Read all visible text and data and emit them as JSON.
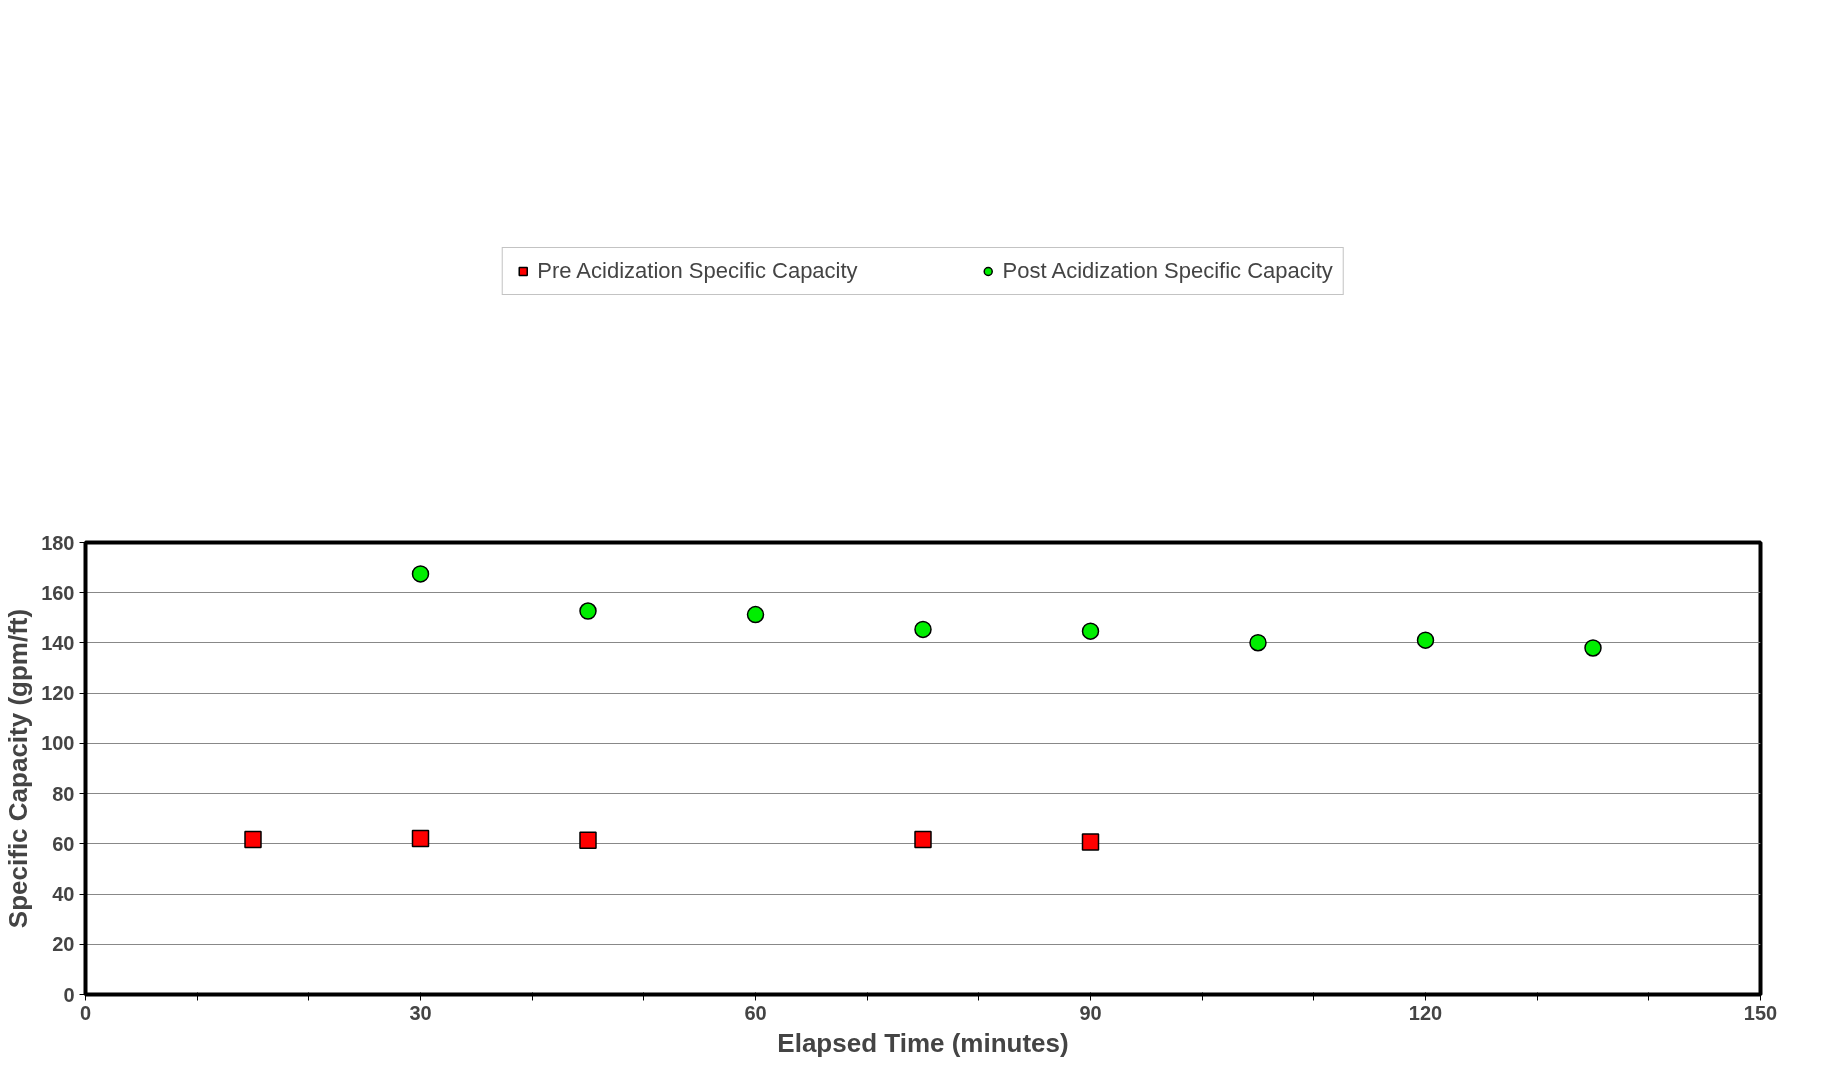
{
  "chart_data": {
    "type": "scatter",
    "xlabel": "Elapsed Time (minutes)",
    "ylabel": "Specific Capacity (gpm/ft)",
    "series": [
      {
        "name": "Pre Acidization Specific Capacity",
        "color": "#ff0000",
        "marker": "square",
        "x": [
          15,
          30,
          45,
          75,
          90
        ],
        "values": [
          61.7,
          62.1,
          61.4,
          61.7,
          60.7
        ]
      },
      {
        "name": "Post Acidization Specific Capacity",
        "color": "#00ee00",
        "marker": "circle",
        "x": [
          30,
          45,
          60,
          75,
          90,
          105,
          120,
          135
        ],
        "values": [
          167.5,
          152.7,
          151.3,
          145.4,
          144.7,
          140.1,
          141.1,
          138.0
        ]
      }
    ],
    "xlim": [
      0,
      150
    ],
    "ylim": [
      0,
      180
    ],
    "xticks": [
      0,
      {
        "value": 10,
        "label": null
      },
      {
        "value": 20,
        "label": null
      },
      30,
      {
        "value": 40,
        "label": null
      },
      {
        "value": 50,
        "label": null
      },
      60,
      {
        "value": 70,
        "label": null
      },
      {
        "value": 80,
        "label": null
      },
      90,
      {
        "value": 100,
        "label": null
      },
      {
        "value": 110,
        "label": null
      },
      120,
      {
        "value": 130,
        "label": null
      },
      {
        "value": 140,
        "label": null
      },
      150
    ],
    "yticks": [
      0,
      20,
      40,
      60,
      80,
      100,
      120,
      140,
      160,
      180
    ],
    "grid": "y",
    "legend": "top"
  }
}
